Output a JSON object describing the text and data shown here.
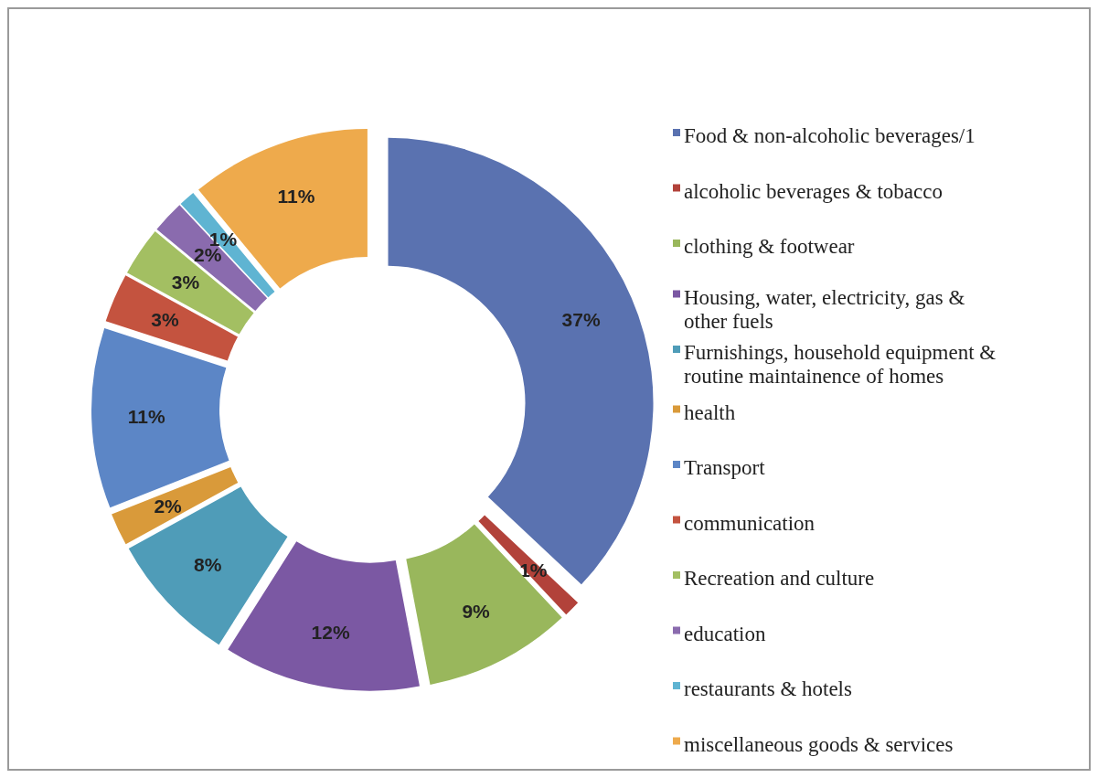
{
  "chart_data": {
    "type": "donut",
    "categories": [
      "Food & non-alcoholic beverages/1",
      "alcoholic beverages & tobacco",
      "clothing & footwear",
      "Housing, water, electricity, gas & other fuels",
      "Furnishings, household equipment & routine maintainence of homes",
      "health",
      "Transport",
      "communication",
      "Recreation and culture",
      "education",
      "restaurants & hotels",
      "miscellaneous goods & services"
    ],
    "values": [
      37,
      1,
      9,
      12,
      8,
      2,
      11,
      3,
      3,
      2,
      1,
      11
    ],
    "value_labels": [
      "37%",
      "1%",
      "9%",
      "12%",
      "8%",
      "2%",
      "11%",
      "3%",
      "3%",
      "2%",
      "1%",
      "11%"
    ],
    "colors": [
      "#5a72b0",
      "#b2423a",
      "#99b75c",
      "#7b58a3",
      "#4f9cb8",
      "#d99a3a",
      "#5c86c6",
      "#c4533f",
      "#a3bf62",
      "#8a6bae",
      "#5fb4d2",
      "#eeaa4c"
    ],
    "legend": "right"
  }
}
